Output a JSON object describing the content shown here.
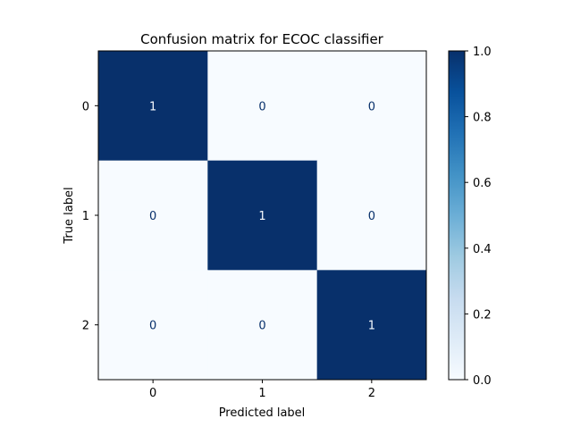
{
  "chart_data": {
    "type": "heatmap",
    "title": "Confusion matrix for ECOC classifier",
    "xlabel": "Predicted label",
    "ylabel": "True label",
    "x_categories": [
      "0",
      "1",
      "2"
    ],
    "y_categories": [
      "0",
      "1",
      "2"
    ],
    "values": [
      [
        1,
        0,
        0
      ],
      [
        0,
        1,
        0
      ],
      [
        0,
        0,
        1
      ]
    ],
    "colormap": "Blues",
    "color_low": "#f7fbff",
    "color_high": "#08306b",
    "text_color_on_dark": "#f7fbff",
    "text_color_on_light": "#08306b",
    "colorbar": {
      "range": [
        0.0,
        1.0
      ],
      "ticks": [
        0.0,
        0.2,
        0.4,
        0.6,
        0.8,
        1.0
      ],
      "tick_labels": [
        "0.0",
        "0.2",
        "0.4",
        "0.6",
        "0.8",
        "1.0"
      ]
    },
    "grid": false
  }
}
